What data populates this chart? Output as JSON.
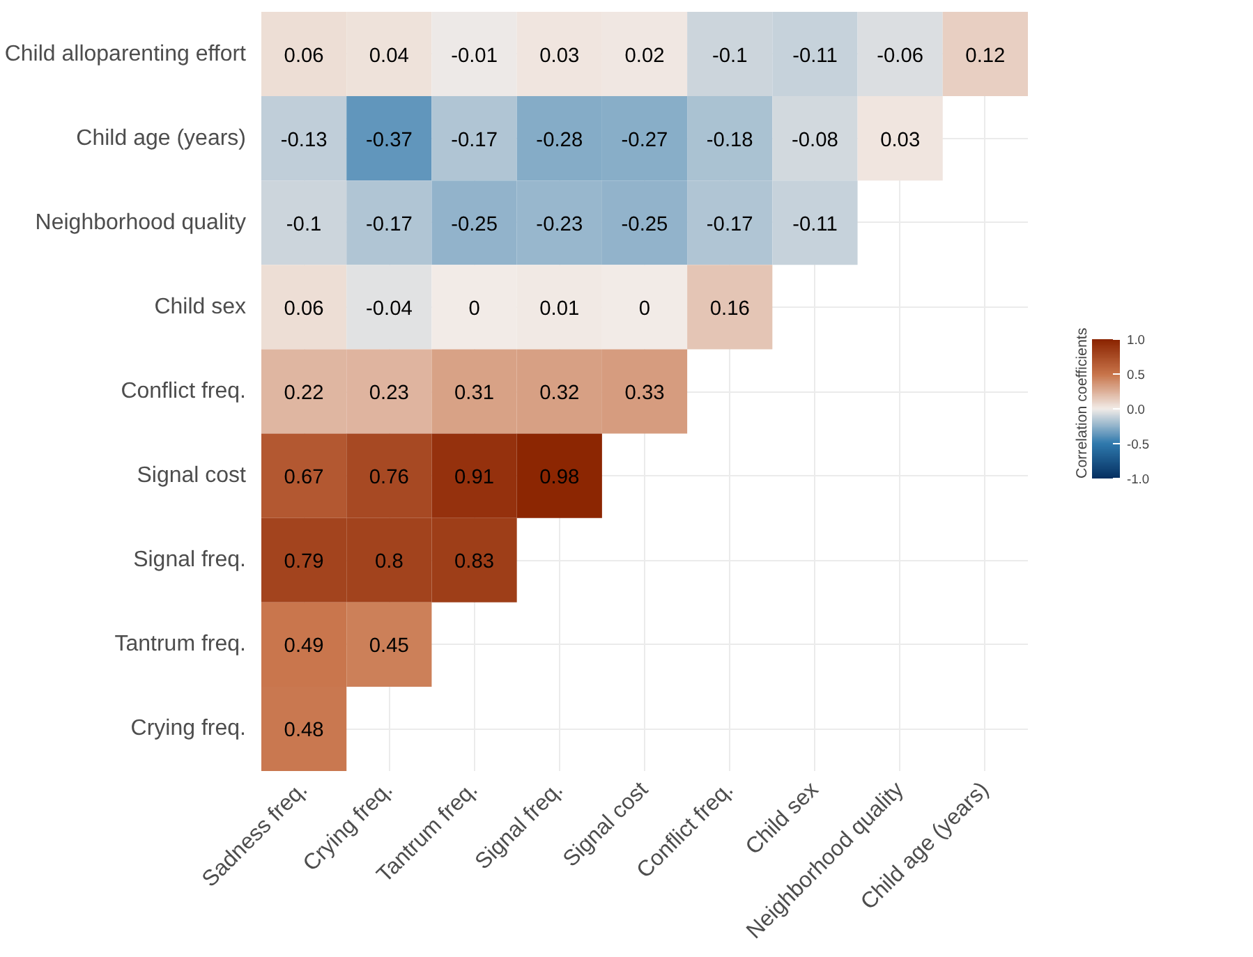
{
  "chart_data": {
    "type": "heatmap",
    "clabel": "Correlation coefficients",
    "categories": [
      "Sadness freq.",
      "Crying freq.",
      "Tantrum freq.",
      "Signal freq.",
      "Signal cost",
      "Conflict freq.",
      "Child sex",
      "Neighborhood quality",
      "Child age (years)"
    ],
    "y_categories": [
      "Child alloparenting effort",
      "Child age (years)",
      "Neighborhood quality",
      "Child sex",
      "Conflict freq.",
      "Signal cost",
      "Signal freq.",
      "Tantrum freq.",
      "Crying freq."
    ],
    "cells": [
      [
        0.06,
        0.04,
        -0.01,
        0.03,
        0.02,
        -0.1,
        -0.11,
        -0.06,
        0.12
      ],
      [
        -0.13,
        -0.37,
        -0.17,
        -0.28,
        -0.27,
        -0.18,
        -0.08,
        0.03,
        null
      ],
      [
        -0.1,
        -0.17,
        -0.25,
        -0.23,
        -0.25,
        -0.17,
        -0.11,
        null,
        null
      ],
      [
        0.06,
        -0.04,
        0,
        0.01,
        0,
        0.16,
        null,
        null,
        null
      ],
      [
        0.22,
        0.23,
        0.31,
        0.32,
        0.33,
        null,
        null,
        null,
        null
      ],
      [
        0.67,
        0.76,
        0.91,
        0.98,
        null,
        null,
        null,
        null,
        null
      ],
      [
        0.79,
        0.8,
        0.83,
        null,
        null,
        null,
        null,
        null,
        null
      ],
      [
        0.49,
        0.45,
        null,
        null,
        null,
        null,
        null,
        null,
        null
      ],
      [
        0.48,
        null,
        null,
        null,
        null,
        null,
        null,
        null,
        null
      ]
    ],
    "data_labels": true,
    "clim": [
      -1,
      1
    ],
    "cticks": [
      {
        "value": -1,
        "label": "-1.0"
      },
      {
        "value": -0.5,
        "label": "-0.5"
      },
      {
        "value": 0,
        "label": "0.0"
      },
      {
        "value": 0.5,
        "label": "0.5"
      },
      {
        "value": 1,
        "label": "1.0"
      }
    ],
    "grid": true
  }
}
